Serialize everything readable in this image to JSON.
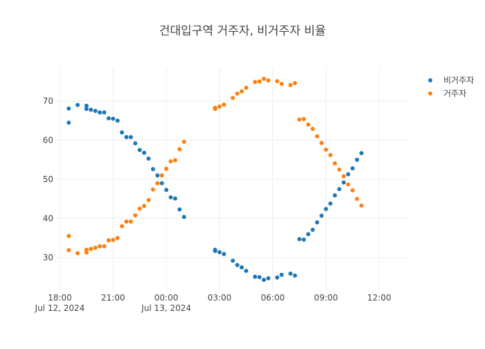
{
  "chart_data": {
    "type": "scatter",
    "title": "건대입구역 거주자, 비거주자 비율",
    "xlabel": "",
    "ylabel": "",
    "x_axis": {
      "type": "datetime",
      "range": [
        "2024-07-12 17:45",
        "2024-07-13 13:40"
      ],
      "ticks": [
        {
          "value": "2024-07-12 18:00",
          "label": "18:00",
          "sublabel": "Jul 12, 2024"
        },
        {
          "value": "2024-07-12 21:00",
          "label": "21:00",
          "sublabel": ""
        },
        {
          "value": "2024-07-13 00:00",
          "label": "00:00",
          "sublabel": "Jul 13, 2024"
        },
        {
          "value": "2024-07-13 03:00",
          "label": "03:00",
          "sublabel": ""
        },
        {
          "value": "2024-07-13 06:00",
          "label": "06:00",
          "sublabel": ""
        },
        {
          "value": "2024-07-13 09:00",
          "label": "09:00",
          "sublabel": ""
        },
        {
          "value": "2024-07-13 12:00",
          "label": "12:00",
          "sublabel": ""
        }
      ]
    },
    "y_axis": {
      "range": [
        21.5,
        78.5
      ],
      "ticks": [
        30,
        40,
        50,
        60,
        70
      ]
    },
    "grid": true,
    "legend_position": "top-right",
    "series": [
      {
        "name": "비거주자",
        "color": "#1f77b4",
        "points": [
          [
            "2024-07-12 18:30",
            64.5
          ],
          [
            "2024-07-12 18:30",
            68.1
          ],
          [
            "2024-07-12 19:00",
            69.0
          ],
          [
            "2024-07-12 19:30",
            68.8
          ],
          [
            "2024-07-12 19:30",
            68.0
          ],
          [
            "2024-07-12 19:45",
            67.8
          ],
          [
            "2024-07-12 20:00",
            67.5
          ],
          [
            "2024-07-12 20:15",
            67.1
          ],
          [
            "2024-07-12 20:30",
            67.1
          ],
          [
            "2024-07-12 20:45",
            65.6
          ],
          [
            "2024-07-12 21:00",
            65.5
          ],
          [
            "2024-07-12 21:15",
            65.0
          ],
          [
            "2024-07-12 21:30",
            62.0
          ],
          [
            "2024-07-12 21:45",
            60.8
          ],
          [
            "2024-07-12 22:00",
            60.8
          ],
          [
            "2024-07-12 22:15",
            59.2
          ],
          [
            "2024-07-12 22:30",
            57.5
          ],
          [
            "2024-07-12 22:45",
            56.8
          ],
          [
            "2024-07-12 23:00",
            55.3
          ],
          [
            "2024-07-12 23:15",
            52.6
          ],
          [
            "2024-07-12 23:30",
            51.0
          ],
          [
            "2024-07-12 23:45",
            49.0
          ],
          [
            "2024-07-13 00:00",
            47.3
          ],
          [
            "2024-07-13 00:15",
            45.4
          ],
          [
            "2024-07-13 00:30",
            45.1
          ],
          [
            "2024-07-13 00:45",
            42.3
          ],
          [
            "2024-07-13 01:00",
            40.4
          ],
          [
            "2024-07-13 02:45",
            32.0
          ],
          [
            "2024-07-13 02:45",
            31.7
          ],
          [
            "2024-07-13 03:00",
            31.4
          ],
          [
            "2024-07-13 03:15",
            30.9
          ],
          [
            "2024-07-13 03:45",
            29.2
          ],
          [
            "2024-07-13 04:00",
            28.1
          ],
          [
            "2024-07-13 04:15",
            27.5
          ],
          [
            "2024-07-13 04:30",
            26.6
          ],
          [
            "2024-07-13 05:00",
            25.1
          ],
          [
            "2024-07-13 05:15",
            25.0
          ],
          [
            "2024-07-13 05:30",
            24.3
          ],
          [
            "2024-07-13 05:45",
            24.7
          ],
          [
            "2024-07-13 06:15",
            24.9
          ],
          [
            "2024-07-13 06:30",
            25.6
          ],
          [
            "2024-07-13 07:00",
            25.9
          ],
          [
            "2024-07-13 07:15",
            25.4
          ],
          [
            "2024-07-13 07:30",
            34.7
          ],
          [
            "2024-07-13 07:45",
            34.6
          ],
          [
            "2024-07-13 08:00",
            36.0
          ],
          [
            "2024-07-13 08:15",
            37.1
          ],
          [
            "2024-07-13 08:30",
            39.0
          ],
          [
            "2024-07-13 08:45",
            40.7
          ],
          [
            "2024-07-13 09:00",
            42.4
          ],
          [
            "2024-07-13 09:15",
            43.8
          ],
          [
            "2024-07-13 09:30",
            45.9
          ],
          [
            "2024-07-13 09:45",
            47.5
          ],
          [
            "2024-07-13 10:00",
            49.2
          ],
          [
            "2024-07-13 10:15",
            51.3
          ],
          [
            "2024-07-13 10:30",
            52.8
          ],
          [
            "2024-07-13 10:45",
            55.0
          ],
          [
            "2024-07-13 11:00",
            56.7
          ]
        ]
      },
      {
        "name": "거주자",
        "color": "#ff7f0e",
        "points": [
          [
            "2024-07-12 18:30",
            35.5
          ],
          [
            "2024-07-12 18:30",
            31.9
          ],
          [
            "2024-07-12 19:00",
            31.1
          ],
          [
            "2024-07-12 19:30",
            31.3
          ],
          [
            "2024-07-12 19:30",
            32.0
          ],
          [
            "2024-07-12 19:45",
            32.2
          ],
          [
            "2024-07-12 20:00",
            32.5
          ],
          [
            "2024-07-12 20:15",
            32.9
          ],
          [
            "2024-07-12 20:30",
            32.9
          ],
          [
            "2024-07-12 20:45",
            34.4
          ],
          [
            "2024-07-12 21:00",
            34.5
          ],
          [
            "2024-07-12 21:15",
            35.0
          ],
          [
            "2024-07-12 21:30",
            38.0
          ],
          [
            "2024-07-12 21:45",
            39.2
          ],
          [
            "2024-07-12 22:00",
            39.2
          ],
          [
            "2024-07-12 22:15",
            40.8
          ],
          [
            "2024-07-12 22:30",
            42.5
          ],
          [
            "2024-07-12 22:45",
            43.2
          ],
          [
            "2024-07-12 23:00",
            44.7
          ],
          [
            "2024-07-12 23:15",
            47.4
          ],
          [
            "2024-07-12 23:30",
            49.0
          ],
          [
            "2024-07-12 23:45",
            51.0
          ],
          [
            "2024-07-13 00:00",
            52.7
          ],
          [
            "2024-07-13 00:15",
            54.6
          ],
          [
            "2024-07-13 00:30",
            54.9
          ],
          [
            "2024-07-13 00:45",
            57.7
          ],
          [
            "2024-07-13 01:00",
            59.6
          ],
          [
            "2024-07-13 02:45",
            68.0
          ],
          [
            "2024-07-13 02:45",
            68.3
          ],
          [
            "2024-07-13 03:00",
            68.6
          ],
          [
            "2024-07-13 03:15",
            69.1
          ],
          [
            "2024-07-13 03:45",
            70.8
          ],
          [
            "2024-07-13 04:00",
            71.9
          ],
          [
            "2024-07-13 04:15",
            72.5
          ],
          [
            "2024-07-13 04:30",
            73.4
          ],
          [
            "2024-07-13 05:00",
            74.9
          ],
          [
            "2024-07-13 05:15",
            75.0
          ],
          [
            "2024-07-13 05:30",
            75.7
          ],
          [
            "2024-07-13 05:45",
            75.3
          ],
          [
            "2024-07-13 06:15",
            75.1
          ],
          [
            "2024-07-13 06:30",
            74.4
          ],
          [
            "2024-07-13 07:00",
            74.1
          ],
          [
            "2024-07-13 07:15",
            74.6
          ],
          [
            "2024-07-13 07:30",
            65.3
          ],
          [
            "2024-07-13 07:45",
            65.4
          ],
          [
            "2024-07-13 08:00",
            64.0
          ],
          [
            "2024-07-13 08:15",
            62.9
          ],
          [
            "2024-07-13 08:30",
            61.0
          ],
          [
            "2024-07-13 08:45",
            59.3
          ],
          [
            "2024-07-13 09:00",
            57.6
          ],
          [
            "2024-07-13 09:15",
            56.2
          ],
          [
            "2024-07-13 09:30",
            54.1
          ],
          [
            "2024-07-13 09:45",
            52.5
          ],
          [
            "2024-07-13 10:00",
            50.8
          ],
          [
            "2024-07-13 10:15",
            48.7
          ],
          [
            "2024-07-13 10:30",
            47.2
          ],
          [
            "2024-07-13 10:45",
            45.0
          ],
          [
            "2024-07-13 11:00",
            43.3
          ]
        ]
      }
    ]
  }
}
